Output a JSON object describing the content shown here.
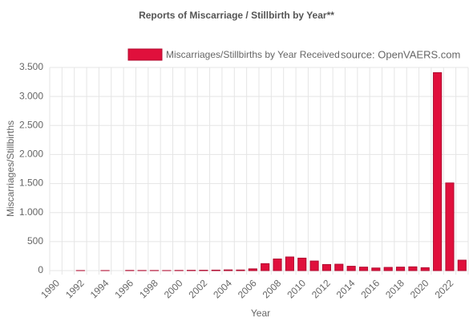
{
  "chart_data": {
    "type": "bar",
    "title": "Reports of Miscarriage / Stillbirth by Year**",
    "source": "source: OpenVAERS.com",
    "xlabel": "Year",
    "ylabel": "Miscarriages/Stillbirths",
    "categories": [
      "1990",
      null,
      "1992",
      null,
      "1994",
      null,
      "1996",
      null,
      "1998",
      null,
      "2000",
      null,
      "2002",
      null,
      "2004",
      null,
      "2006",
      null,
      "2008",
      null,
      "2010",
      null,
      "2012",
      null,
      "2014",
      null,
      "2016",
      null,
      "2018",
      null,
      "2020",
      null,
      "2022",
      null
    ],
    "series": [
      {
        "name": "Miscarriages/Stillbirths by Year Received",
        "color": "#e0103c",
        "values": [
          0,
          0,
          1,
          0,
          1,
          0,
          3,
          2,
          2,
          1,
          3,
          5,
          6,
          8,
          12,
          10,
          30,
          120,
          200,
          235,
          215,
          165,
          105,
          110,
          75,
          60,
          45,
          55,
          60,
          65,
          50,
          3410,
          1510,
          180
        ]
      }
    ],
    "ylim": [
      0,
      3500
    ],
    "yticks": [
      0,
      500,
      {
        "value": 1000,
        "label": "1.000"
      },
      {
        "value": 1500,
        "label": "1.500"
      },
      {
        "value": 2000,
        "label": "2.000"
      },
      {
        "value": 2500,
        "label": "2.500"
      },
      {
        "value": 3000,
        "label": "3.000"
      },
      {
        "value": 3500,
        "label": "3.500"
      }
    ],
    "grid": true
  }
}
